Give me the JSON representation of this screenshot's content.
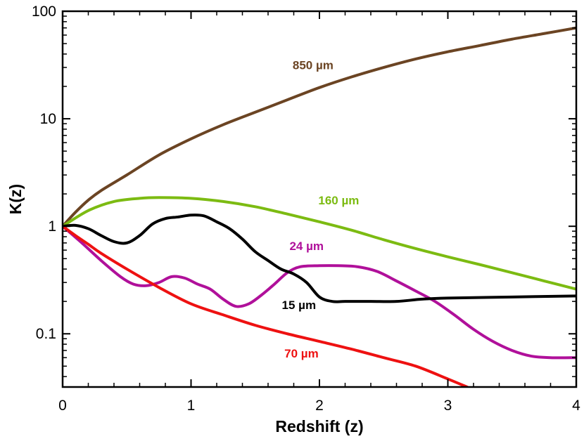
{
  "chart_data": {
    "type": "line",
    "title": "",
    "xlabel": "Redshift (z)",
    "ylabel": "K(z)",
    "xlim": [
      0,
      4
    ],
    "ylim": [
      0.032,
      100
    ],
    "yscale": "log",
    "grid": false,
    "x_ticks": [
      0,
      1,
      2,
      3,
      4
    ],
    "x_tick_labels": [
      "0",
      "1",
      "2",
      "3",
      "4"
    ],
    "y_ticks": [
      0.1,
      1,
      10,
      100
    ],
    "y_tick_labels": [
      "0.1",
      "1",
      "10",
      "100"
    ],
    "series": [
      {
        "name": "850 µm",
        "label": "850 µm",
        "color": "#6b4423",
        "x": [
          0,
          0.1,
          0.2,
          0.3,
          0.5,
          0.75,
          1.0,
          1.25,
          1.5,
          1.75,
          2.0,
          2.25,
          2.5,
          2.75,
          3.0,
          3.25,
          3.5,
          3.75,
          4.0
        ],
        "y": [
          1.0,
          1.35,
          1.75,
          2.15,
          3.0,
          4.6,
          6.5,
          8.8,
          11.5,
          15.0,
          19.5,
          24.5,
          30.0,
          36.0,
          42.0,
          48.0,
          55.0,
          62.0,
          70.0
        ]
      },
      {
        "name": "160 µm",
        "label": "160 µm",
        "color": "#7cbb12",
        "x": [
          0,
          0.2,
          0.4,
          0.6,
          0.75,
          1.0,
          1.25,
          1.5,
          1.75,
          2.0,
          2.25,
          2.5,
          2.75,
          3.0,
          3.25,
          3.5,
          3.75,
          4.0
        ],
        "y": [
          1.0,
          1.4,
          1.7,
          1.82,
          1.85,
          1.82,
          1.7,
          1.52,
          1.3,
          1.1,
          0.92,
          0.75,
          0.62,
          0.52,
          0.44,
          0.37,
          0.31,
          0.26
        ]
      },
      {
        "name": "24 µm",
        "label": "24 µm",
        "color": "#b0109a",
        "x": [
          0,
          0.15,
          0.3,
          0.45,
          0.55,
          0.65,
          0.75,
          0.85,
          0.95,
          1.05,
          1.15,
          1.25,
          1.35,
          1.45,
          1.55,
          1.65,
          1.75,
          1.85,
          2.0,
          2.15,
          2.3,
          2.45,
          2.6,
          2.75,
          2.9,
          3.05,
          3.2,
          3.35,
          3.5,
          3.65,
          3.8,
          4.0
        ],
        "y": [
          1.0,
          0.7,
          0.48,
          0.34,
          0.29,
          0.28,
          0.3,
          0.34,
          0.33,
          0.29,
          0.26,
          0.21,
          0.18,
          0.19,
          0.23,
          0.29,
          0.37,
          0.42,
          0.43,
          0.43,
          0.42,
          0.38,
          0.31,
          0.25,
          0.2,
          0.15,
          0.11,
          0.085,
          0.07,
          0.062,
          0.06,
          0.06
        ]
      },
      {
        "name": "15 µm",
        "label": "15 µm",
        "color": "#000000",
        "x": [
          0,
          0.1,
          0.2,
          0.3,
          0.4,
          0.5,
          0.6,
          0.7,
          0.8,
          0.9,
          1.0,
          1.1,
          1.2,
          1.3,
          1.4,
          1.5,
          1.6,
          1.7,
          1.8,
          1.9,
          2.0,
          2.1,
          2.2,
          2.4,
          2.6,
          2.8,
          3.0,
          3.5,
          4.0
        ],
        "y": [
          1.0,
          1.02,
          0.95,
          0.82,
          0.72,
          0.7,
          0.82,
          1.05,
          1.18,
          1.22,
          1.27,
          1.25,
          1.1,
          0.95,
          0.76,
          0.58,
          0.48,
          0.4,
          0.36,
          0.3,
          0.22,
          0.2,
          0.2,
          0.2,
          0.2,
          0.21,
          0.215,
          0.22,
          0.225
        ]
      },
      {
        "name": "70 µm",
        "label": "70 µm",
        "color": "#ee1111",
        "x": [
          0,
          0.1,
          0.2,
          0.3,
          0.5,
          0.75,
          1.0,
          1.25,
          1.5,
          1.75,
          2.0,
          2.25,
          2.5,
          2.75,
          3.0,
          3.15
        ],
        "y": [
          1.0,
          0.82,
          0.68,
          0.56,
          0.4,
          0.27,
          0.19,
          0.15,
          0.12,
          0.1,
          0.085,
          0.072,
          0.06,
          0.05,
          0.038,
          0.032
        ]
      }
    ],
    "annotations": [
      {
        "text": "850 µm",
        "x": 1.95,
        "y": 29,
        "color": "#6b4423"
      },
      {
        "text": "160 µm",
        "x": 2.15,
        "y": 1.6,
        "color": "#7cbb12"
      },
      {
        "text": "24 µm",
        "x": 1.9,
        "y": 0.6,
        "color": "#b0109a"
      },
      {
        "text": "15 µm",
        "x": 1.84,
        "y": 0.17,
        "color": "#000000"
      },
      {
        "text": "70 µm",
        "x": 1.86,
        "y": 0.06,
        "color": "#ee1111"
      }
    ]
  }
}
